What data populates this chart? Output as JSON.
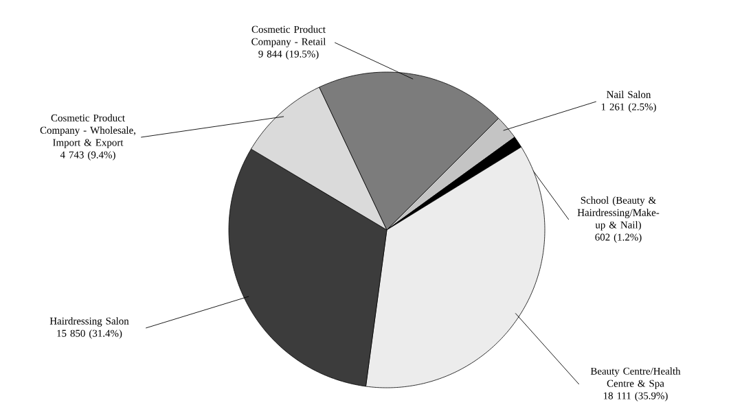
{
  "chart_data": {
    "type": "pie",
    "categories": [
      "Nail Salon",
      "School (Beauty & Hairdressing/Make-up & Nail)",
      "Beauty Centre/Health Centre & Spa",
      "Hairdressing Salon",
      "Cosmetic Product Company - Wholesale, Import & Export",
      "Cosmetic Product Company - Retail"
    ],
    "values": [
      1261,
      602,
      18111,
      15850,
      4743,
      9844
    ],
    "colors": [
      "#c4c4c4",
      "#000000",
      "#ececec",
      "#3c3c3c",
      "#dadada",
      "#7c7c7c"
    ],
    "value_labels": [
      "1 261 (2.5%)",
      "602 (1.2%)",
      "18 111 (35.9%)",
      "15 850 (31.4%)",
      "4 743 (9.4%)",
      "9 844 (19.5%)"
    ]
  }
}
